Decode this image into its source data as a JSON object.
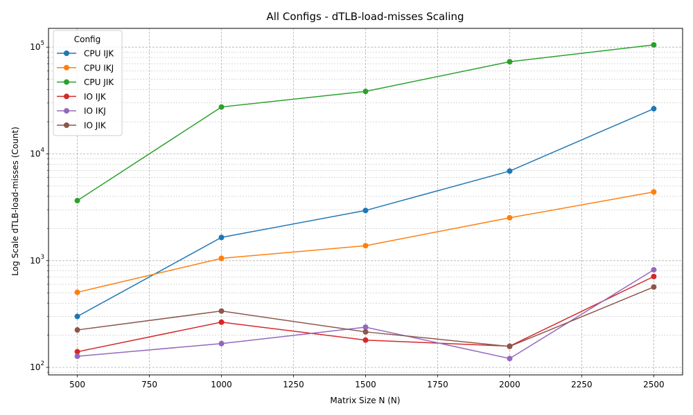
{
  "chart_data": {
    "type": "line",
    "title": "All Configs - dTLB-load-misses Scaling",
    "xlabel": "Matrix Size N (N)",
    "ylabel": "Log Scale dTLB-load-misses (Count)",
    "yscale": "log",
    "xlim": [
      400,
      2600
    ],
    "ylim": [
      85,
      150000
    ],
    "xticks": [
      500,
      750,
      1000,
      1250,
      1500,
      1750,
      2000,
      2250,
      2500
    ],
    "yticks": [
      {
        "value": 100,
        "base": "10",
        "exp": "2"
      },
      {
        "value": 1000,
        "base": "10",
        "exp": "3"
      },
      {
        "value": 10000,
        "base": "10",
        "exp": "4"
      },
      {
        "value": 100000,
        "base": "10",
        "exp": "5"
      }
    ],
    "grid": true,
    "legend_title": "Config",
    "legend_position": "upper-left",
    "x": [
      500,
      1000,
      1500,
      2000,
      2500
    ],
    "series": [
      {
        "name": "CPU IJK",
        "color": "#1f77b4",
        "values": [
          300,
          1650,
          2950,
          6900,
          26500
        ]
      },
      {
        "name": "CPU IKJ",
        "color": "#ff7f0e",
        "values": [
          505,
          1050,
          1380,
          2520,
          4400
        ]
      },
      {
        "name": "CPU JIK",
        "color": "#2ca02c",
        "values": [
          3650,
          27500,
          38500,
          73000,
          105000
        ]
      },
      {
        "name": "IO IJK",
        "color": "#d62728",
        "values": [
          140,
          265,
          180,
          158,
          710
        ]
      },
      {
        "name": "IO IKJ",
        "color": "#9467bd",
        "values": [
          127,
          167,
          238,
          121,
          820
        ]
      },
      {
        "name": "IO JIK",
        "color": "#8c564b",
        "values": [
          224,
          337,
          215,
          157,
          566
        ]
      }
    ]
  }
}
